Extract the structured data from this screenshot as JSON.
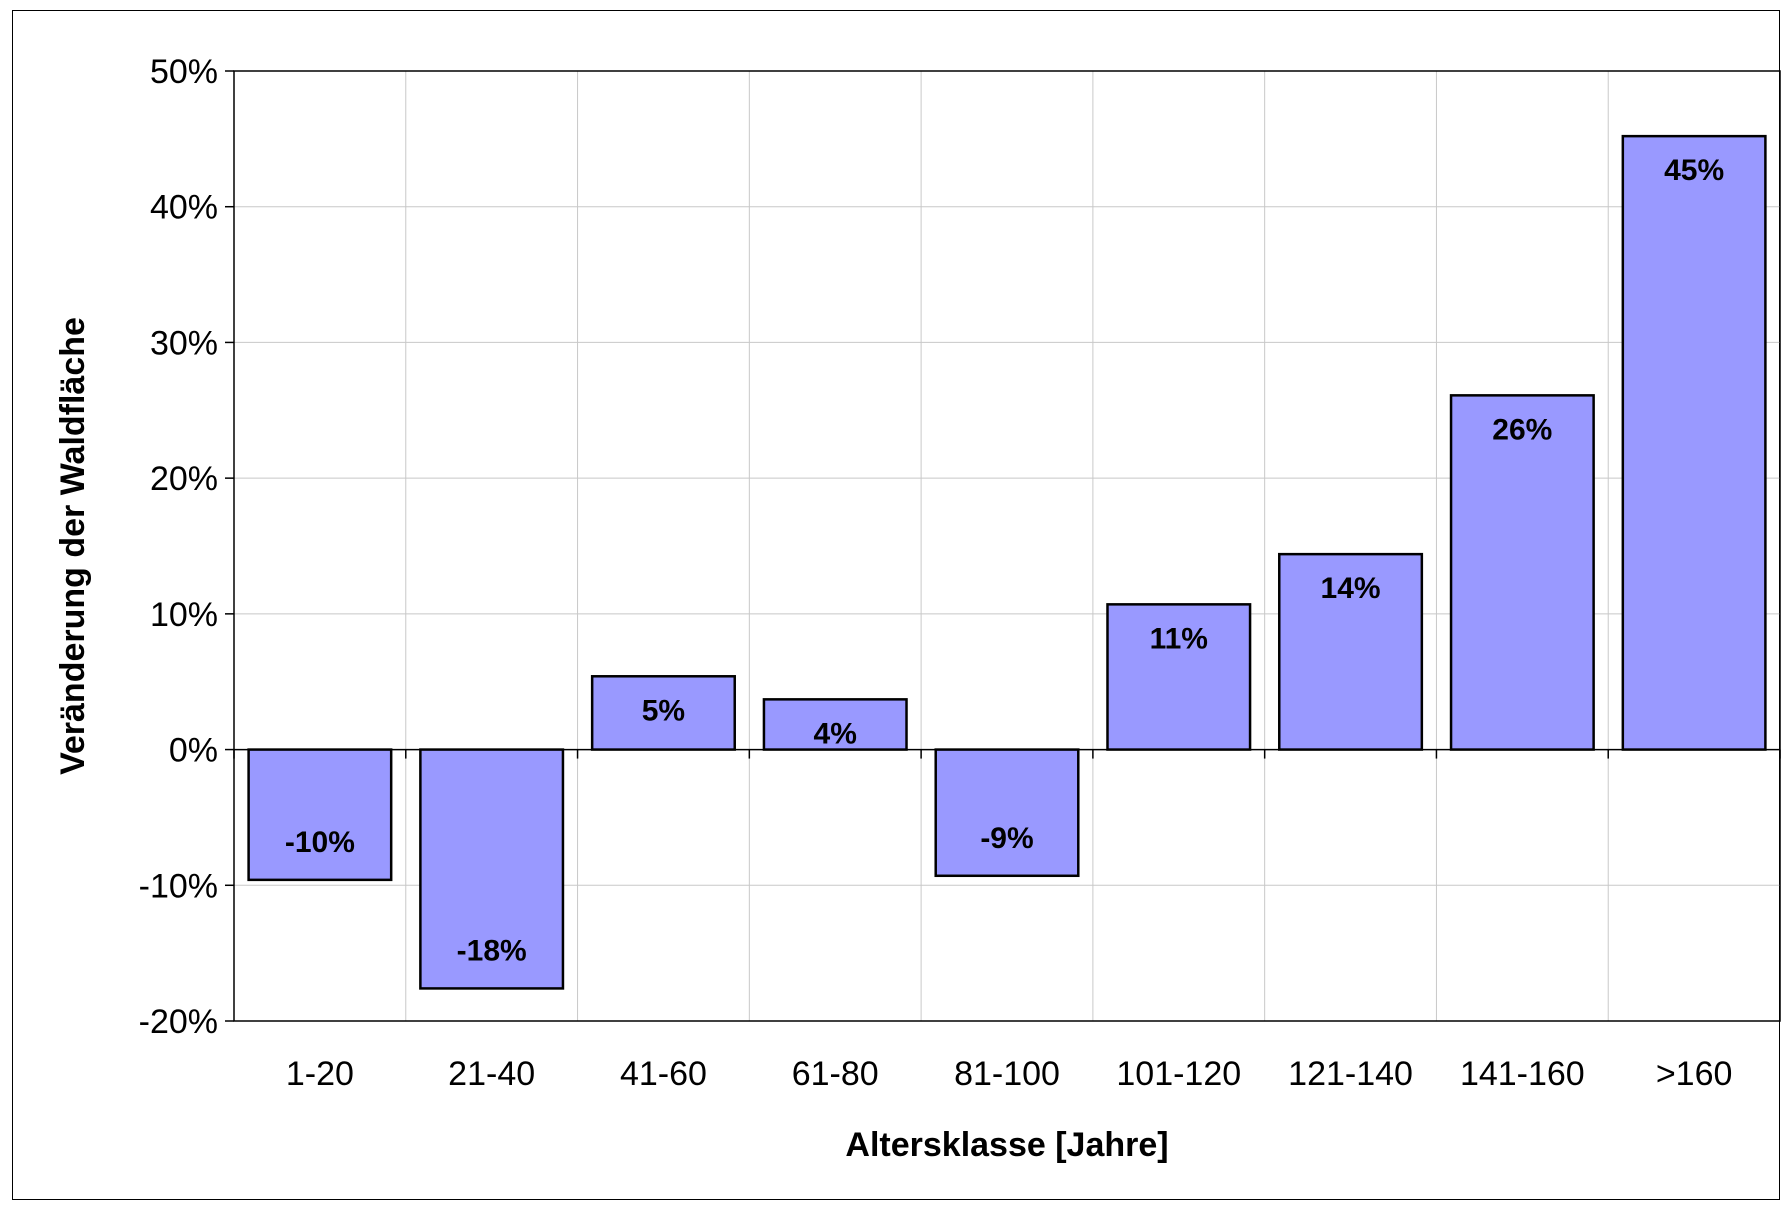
{
  "chart_data": {
    "type": "bar",
    "categories": [
      "1-20",
      "21-40",
      "41-60",
      "61-80",
      "81-100",
      "101-120",
      "121-140",
      "141-160",
      ">160"
    ],
    "values": [
      -0.096,
      -0.176,
      0.054,
      0.037,
      -0.093,
      0.107,
      0.144,
      0.261,
      0.452
    ],
    "data_labels": [
      "-10%",
      "-18%",
      "5%",
      "4%",
      "-9%",
      "11%",
      "14%",
      "26%",
      "45%"
    ],
    "ylim": [
      -0.2,
      0.5
    ],
    "yticks": [
      -0.2,
      -0.1,
      0,
      0.1,
      0.2,
      0.3,
      0.4,
      0.5
    ],
    "ytick_labels": [
      "-20%",
      "-10%",
      "0%",
      "10%",
      "20%",
      "30%",
      "40%",
      "50%"
    ],
    "xlabel": "Altersklasse [Jahre]",
    "ylabel": "Veränderung der Waldfläche",
    "grid": true,
    "legend": "none",
    "colors": {
      "bar_fill": "#9999ff",
      "bar_stroke": "#000000",
      "grid": "#c8c8c8"
    }
  }
}
